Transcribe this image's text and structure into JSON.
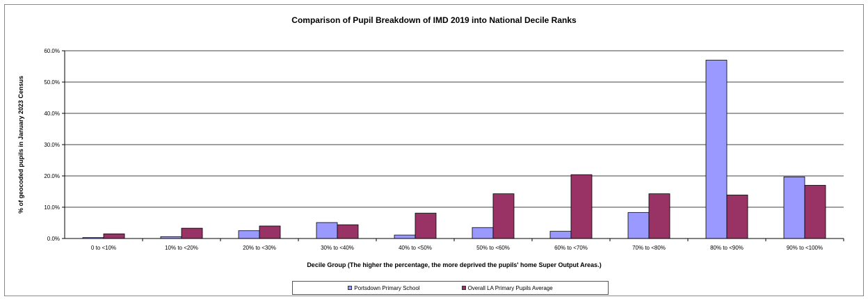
{
  "chart_data": {
    "type": "bar",
    "title": "Comparison of Pupil Breakdown of IMD 2019 into National Decile Ranks",
    "xlabel": "Decile Group (The higher the percentage, the more deprived the pupils' home Super Output Areas.)",
    "ylabel": "% of geocoded pupils in January 2023 Census",
    "categories": [
      "0 to <10%",
      "10% to <20%",
      "20% to <30%",
      "30% to <40%",
      "40% to <50%",
      "50% to <60%",
      "60% to <70%",
      "70% to <80%",
      "80% to <90%",
      "90% to <100%"
    ],
    "series": [
      {
        "name": "Portsdown Primary School",
        "color": "#9999ff",
        "values": [
          0.3,
          0.6,
          2.5,
          5.1,
          1.1,
          3.5,
          2.3,
          8.3,
          57.0,
          19.7
        ]
      },
      {
        "name": "Overall LA Primary Pupils Average",
        "color": "#993366",
        "values": [
          1.5,
          3.3,
          4.0,
          4.4,
          8.1,
          14.3,
          20.4,
          14.3,
          13.9,
          17.0
        ]
      }
    ],
    "ylim": [
      0,
      60
    ],
    "yticks": [
      "0.0%",
      "10.0%",
      "20.0%",
      "30.0%",
      "40.0%",
      "50.0%",
      "60.0%"
    ],
    "grid": true,
    "legend_position": "bottom"
  }
}
